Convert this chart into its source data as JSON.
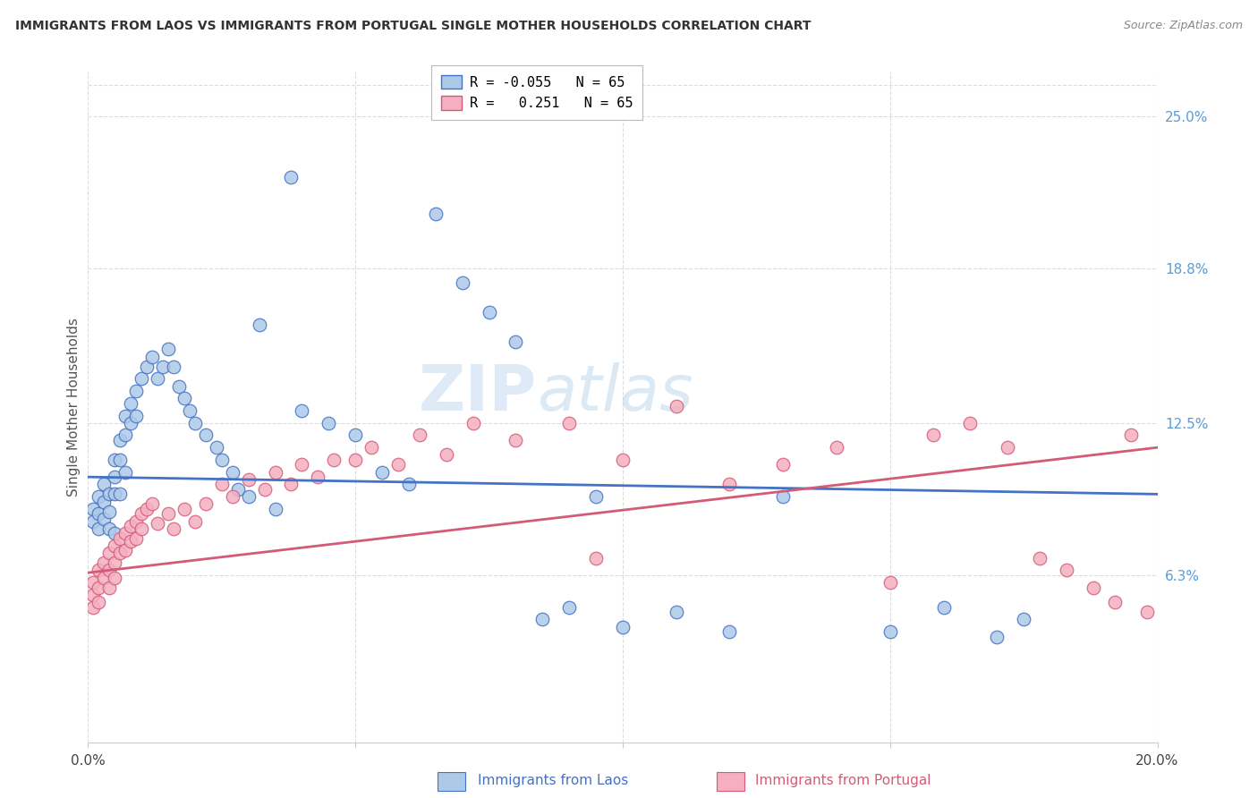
{
  "title": "IMMIGRANTS FROM LAOS VS IMMIGRANTS FROM PORTUGAL SINGLE MOTHER HOUSEHOLDS CORRELATION CHART",
  "source": "Source: ZipAtlas.com",
  "xlabel_laos": "Immigrants from Laos",
  "xlabel_portugal": "Immigrants from Portugal",
  "ylabel": "Single Mother Households",
  "y_tick_labels": [
    "6.3%",
    "12.5%",
    "18.8%",
    "25.0%"
  ],
  "y_tick_values": [
    0.063,
    0.125,
    0.188,
    0.25
  ],
  "xlim": [
    0.0,
    0.2
  ],
  "ylim": [
    -0.005,
    0.268
  ],
  "R_laos": -0.055,
  "N_laos": 65,
  "R_portugal": 0.251,
  "N_portugal": 65,
  "color_laos": "#adc9e8",
  "color_portugal": "#f5afc0",
  "color_laos_line": "#4472c4",
  "color_portugal_line": "#d45b78",
  "color_right_axis": "#5b9bd5",
  "laos_line_start": 0.103,
  "laos_line_end": 0.096,
  "portugal_line_start": 0.064,
  "portugal_line_end": 0.115,
  "laos_x": [
    0.001,
    0.001,
    0.002,
    0.002,
    0.002,
    0.003,
    0.003,
    0.003,
    0.004,
    0.004,
    0.004,
    0.005,
    0.005,
    0.005,
    0.005,
    0.006,
    0.006,
    0.006,
    0.007,
    0.007,
    0.007,
    0.008,
    0.008,
    0.009,
    0.009,
    0.01,
    0.011,
    0.012,
    0.013,
    0.014,
    0.015,
    0.016,
    0.017,
    0.018,
    0.019,
    0.02,
    0.022,
    0.024,
    0.025,
    0.027,
    0.028,
    0.03,
    0.032,
    0.035,
    0.038,
    0.04,
    0.045,
    0.05,
    0.055,
    0.06,
    0.065,
    0.07,
    0.075,
    0.08,
    0.085,
    0.09,
    0.095,
    0.1,
    0.11,
    0.12,
    0.13,
    0.15,
    0.16,
    0.17,
    0.175
  ],
  "laos_y": [
    0.09,
    0.085,
    0.095,
    0.088,
    0.082,
    0.1,
    0.093,
    0.086,
    0.096,
    0.089,
    0.082,
    0.11,
    0.103,
    0.096,
    0.08,
    0.118,
    0.11,
    0.096,
    0.128,
    0.12,
    0.105,
    0.133,
    0.125,
    0.138,
    0.128,
    0.143,
    0.148,
    0.152,
    0.143,
    0.148,
    0.155,
    0.148,
    0.14,
    0.135,
    0.13,
    0.125,
    0.12,
    0.115,
    0.11,
    0.105,
    0.098,
    0.095,
    0.165,
    0.09,
    0.225,
    0.13,
    0.125,
    0.12,
    0.105,
    0.1,
    0.21,
    0.182,
    0.17,
    0.158,
    0.045,
    0.05,
    0.095,
    0.042,
    0.048,
    0.04,
    0.095,
    0.04,
    0.05,
    0.038,
    0.045
  ],
  "portugal_x": [
    0.001,
    0.001,
    0.001,
    0.002,
    0.002,
    0.002,
    0.003,
    0.003,
    0.004,
    0.004,
    0.004,
    0.005,
    0.005,
    0.005,
    0.006,
    0.006,
    0.007,
    0.007,
    0.008,
    0.008,
    0.009,
    0.009,
    0.01,
    0.01,
    0.011,
    0.012,
    0.013,
    0.015,
    0.016,
    0.018,
    0.02,
    0.022,
    0.025,
    0.027,
    0.03,
    0.033,
    0.035,
    0.038,
    0.04,
    0.043,
    0.046,
    0.05,
    0.053,
    0.058,
    0.062,
    0.067,
    0.072,
    0.08,
    0.09,
    0.095,
    0.1,
    0.11,
    0.12,
    0.13,
    0.14,
    0.15,
    0.158,
    0.165,
    0.172,
    0.178,
    0.183,
    0.188,
    0.192,
    0.195,
    0.198
  ],
  "portugal_y": [
    0.06,
    0.055,
    0.05,
    0.065,
    0.058,
    0.052,
    0.068,
    0.062,
    0.072,
    0.065,
    0.058,
    0.075,
    0.068,
    0.062,
    0.078,
    0.072,
    0.08,
    0.073,
    0.083,
    0.077,
    0.085,
    0.078,
    0.088,
    0.082,
    0.09,
    0.092,
    0.084,
    0.088,
    0.082,
    0.09,
    0.085,
    0.092,
    0.1,
    0.095,
    0.102,
    0.098,
    0.105,
    0.1,
    0.108,
    0.103,
    0.11,
    0.11,
    0.115,
    0.108,
    0.12,
    0.112,
    0.125,
    0.118,
    0.125,
    0.07,
    0.11,
    0.132,
    0.1,
    0.108,
    0.115,
    0.06,
    0.12,
    0.125,
    0.115,
    0.07,
    0.065,
    0.058,
    0.052,
    0.12,
    0.048
  ]
}
